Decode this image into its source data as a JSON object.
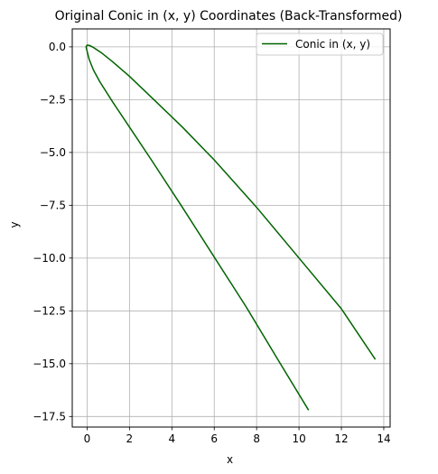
{
  "chart_data": {
    "type": "line",
    "title": "Original Conic in (x, y) Coordinates (Back-Transformed)",
    "xlabel": "x",
    "ylabel": "y",
    "xlim": [
      -0.7,
      14.3
    ],
    "ylim": [
      -18.0,
      0.85
    ],
    "xticks": [
      0,
      2,
      4,
      6,
      8,
      10,
      12,
      14
    ],
    "xtick_labels": [
      "0",
      "2",
      "4",
      "6",
      "8",
      "10",
      "12",
      "14"
    ],
    "yticks": [
      0.0,
      -2.5,
      -5.0,
      -7.5,
      -10.0,
      -12.5,
      -15.0,
      -17.5
    ],
    "ytick_labels": [
      "0.0",
      "−2.5",
      "−5.0",
      "−7.5",
      "−10.0",
      "−12.5",
      "−15.0",
      "−17.5"
    ],
    "grid": true,
    "legend_position": "top-right",
    "series": [
      {
        "name": "Conic in (x, y)",
        "color": "#006400",
        "x": [
          10.45,
          9.0,
          7.5,
          6.0,
          4.5,
          3.0,
          2.0,
          1.2,
          0.6,
          0.3,
          0.1,
          0.0,
          -0.05,
          0.0,
          0.1,
          0.3,
          0.7,
          1.2,
          2.0,
          3.0,
          4.5,
          6.0,
          8.0,
          10.0,
          12.0,
          13.6
        ],
        "y": [
          -17.2,
          -14.8,
          -12.3,
          -9.95,
          -7.6,
          -5.3,
          -3.8,
          -2.6,
          -1.65,
          -1.1,
          -0.6,
          -0.2,
          0.0,
          0.08,
          0.07,
          -0.03,
          -0.3,
          -0.7,
          -1.4,
          -2.35,
          -3.8,
          -5.35,
          -7.6,
          -10.0,
          -12.4,
          -14.8
        ]
      }
    ]
  }
}
